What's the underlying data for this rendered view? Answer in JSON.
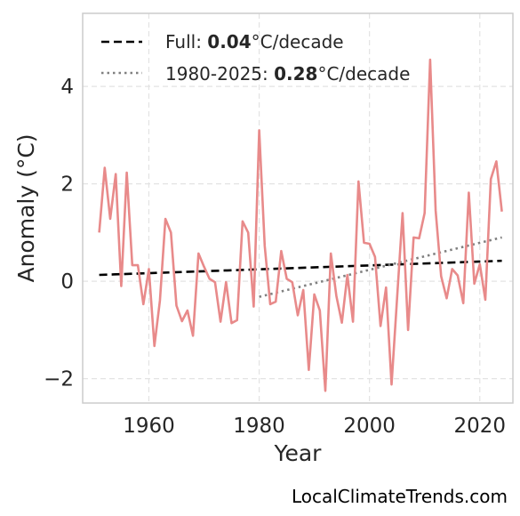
{
  "chart_data": {
    "type": "line",
    "xlabel": "Year",
    "ylabel": "Anomaly (°C)",
    "xlim": [
      1948,
      2026
    ],
    "ylim": [
      -2.5,
      5.5
    ],
    "xticks": [
      1960,
      1980,
      2000,
      2020
    ],
    "yticks": [
      -2,
      0,
      2,
      4
    ],
    "ytick_labels": [
      "−2",
      "0",
      "2",
      "4"
    ],
    "grid": true,
    "legend_position": "top-left",
    "colors": {
      "series": "#e88a8a",
      "full_trend": "#000000",
      "recent_trend": "#808080"
    },
    "series": [
      {
        "x": [
          1951,
          1952,
          1953,
          1954,
          1955,
          1956,
          1957,
          1958,
          1959,
          1960,
          1961,
          1962,
          1963,
          1964,
          1965,
          1966,
          1967,
          1968,
          1969,
          1970,
          1971,
          1972,
          1973,
          1974,
          1975,
          1976,
          1977,
          1978,
          1979,
          1980,
          1981,
          1982,
          1983,
          1984,
          1985,
          1986,
          1987,
          1988,
          1989,
          1990,
          1991,
          1992,
          1993,
          1994,
          1995,
          1996,
          1997,
          1998,
          1999,
          2000,
          2001,
          2002,
          2003,
          2004,
          2005,
          2006,
          2007,
          2008,
          2009,
          2010,
          2011,
          2012,
          2013,
          2014,
          2015,
          2016,
          2017,
          2018,
          2019,
          2020,
          2021,
          2022,
          2023,
          2024
        ],
        "values": [
          1.0,
          2.33,
          1.28,
          2.2,
          -0.1,
          2.23,
          0.33,
          0.33,
          -0.47,
          0.25,
          -1.33,
          -0.4,
          1.28,
          1.0,
          -0.5,
          -0.82,
          -0.6,
          -1.12,
          0.57,
          0.3,
          0.05,
          -0.02,
          -0.83,
          -0.02,
          -0.86,
          -0.8,
          1.23,
          1.0,
          -0.52,
          3.1,
          0.73,
          -0.47,
          -0.42,
          0.62,
          0.05,
          -0.02,
          -0.7,
          -0.18,
          -1.82,
          -0.27,
          -0.6,
          -2.25,
          0.57,
          -0.3,
          -0.85,
          0.13,
          -0.83,
          2.05,
          0.79,
          0.77,
          0.5,
          -0.92,
          -0.13,
          -2.12,
          -0.35,
          1.4,
          -1.0,
          0.9,
          0.88,
          1.4,
          4.55,
          1.45,
          0.1,
          -0.35,
          0.25,
          0.12,
          -0.45,
          1.82,
          -0.05,
          0.35,
          -0.38,
          2.1,
          2.46,
          1.43
        ]
      }
    ],
    "trend_lines": [
      {
        "x": [
          1951,
          2024
        ],
        "values": [
          0.13,
          0.42
        ]
      },
      {
        "x": [
          1980,
          2024
        ],
        "values": [
          -0.32,
          0.9
        ]
      }
    ],
    "legend": [
      {
        "prefix": "Full: ",
        "value": "0.04",
        "suffix": "°C/decade"
      },
      {
        "prefix": "1980-2025: ",
        "value": "0.28",
        "suffix": "°C/decade"
      }
    ]
  },
  "credit": "LocalClimateTrends.com"
}
